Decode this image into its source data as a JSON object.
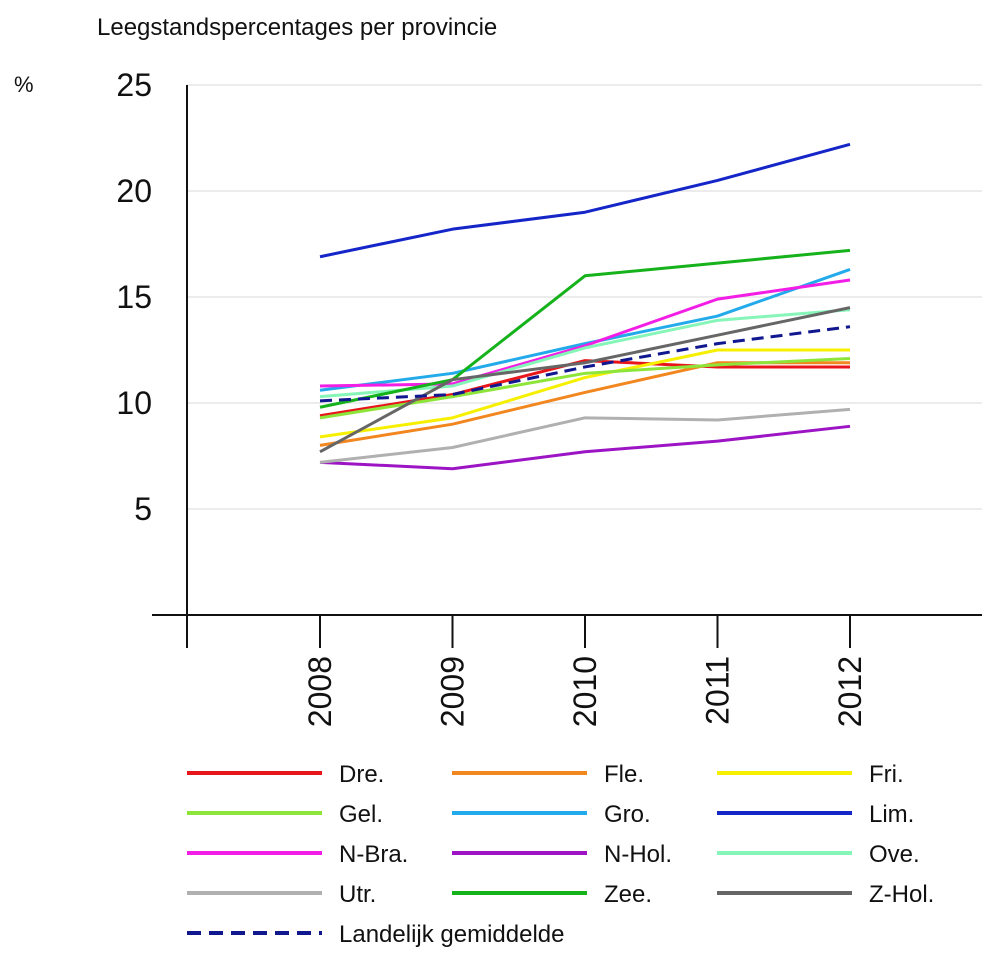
{
  "chart_data": {
    "type": "line",
    "title": "Leegstandspercentages per provincie",
    "ylabel": "%",
    "xlabel": "",
    "x": [
      "2008",
      "2009",
      "2010",
      "2011",
      "2012"
    ],
    "ylim": [
      0,
      25
    ],
    "yticks": [
      5,
      10,
      15,
      20,
      25
    ],
    "grid": true,
    "legend_position": "bottom",
    "series": [
      {
        "name": "Dre.",
        "color": "#e8161b",
        "dashed": false,
        "values": [
          9.4,
          10.4,
          12.0,
          11.7,
          11.7
        ]
      },
      {
        "name": "Fle.",
        "color": "#f2861f",
        "dashed": false,
        "values": [
          8.0,
          9.0,
          10.5,
          11.9,
          11.9
        ]
      },
      {
        "name": "Fri.",
        "color": "#f6f000",
        "dashed": false,
        "values": [
          8.4,
          9.3,
          11.2,
          12.5,
          12.5
        ]
      },
      {
        "name": "Gel.",
        "color": "#8ee53a",
        "dashed": false,
        "values": [
          9.3,
          10.3,
          11.4,
          11.8,
          12.1
        ]
      },
      {
        "name": "Gro.",
        "color": "#22aaeb",
        "dashed": false,
        "values": [
          10.6,
          11.4,
          12.8,
          14.1,
          16.3
        ]
      },
      {
        "name": "Lim.",
        "color": "#1426c8",
        "dashed": false,
        "values": [
          16.9,
          18.2,
          19.0,
          20.5,
          22.2
        ]
      },
      {
        "name": "N-Bra.",
        "color": "#f21ee6",
        "dashed": false,
        "values": [
          10.8,
          10.9,
          12.7,
          14.9,
          15.8
        ]
      },
      {
        "name": "N-Hol.",
        "color": "#9c14c4",
        "dashed": false,
        "values": [
          7.2,
          6.9,
          7.7,
          8.2,
          8.9
        ]
      },
      {
        "name": "Ove.",
        "color": "#86f5b8",
        "dashed": false,
        "values": [
          10.3,
          10.8,
          12.6,
          13.9,
          14.4
        ]
      },
      {
        "name": "Utr.",
        "color": "#b0b0b0",
        "dashed": false,
        "values": [
          7.2,
          7.9,
          9.3,
          9.2,
          9.7
        ]
      },
      {
        "name": "Zee.",
        "color": "#16b21c",
        "dashed": false,
        "values": [
          9.8,
          11.1,
          16.0,
          16.6,
          17.2
        ]
      },
      {
        "name": "Z-Hol.",
        "color": "#666666",
        "dashed": false,
        "values": [
          7.7,
          11.1,
          11.9,
          13.2,
          14.5
        ]
      },
      {
        "name": "Landelijk gemiddelde",
        "color": "#10178f",
        "dashed": true,
        "values": [
          10.1,
          10.4,
          11.7,
          12.8,
          13.6
        ]
      }
    ]
  }
}
